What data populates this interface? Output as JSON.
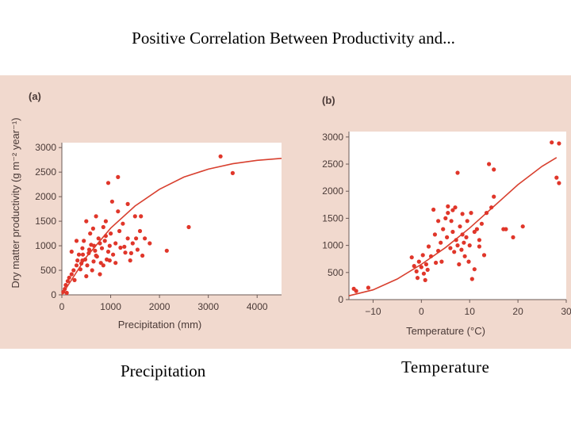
{
  "slide": {
    "title": "Positive Correlation Between Productivity and...",
    "caption_left": "Precipitation",
    "caption_right": "Temperature"
  },
  "colors": {
    "panel_bg": "#f1d9ce",
    "plot_bg": "#ffffff",
    "points": "#e0362a",
    "curve": "#d8402f",
    "axis_text": "#4a3a37"
  },
  "chart_data": [
    {
      "type": "scatter",
      "panel_label": "(a)",
      "xlabel": "Precipitation (mm)",
      "ylabel": "Dry matter productivity (g m⁻² year⁻¹)",
      "xlim": [
        0,
        4500
      ],
      "ylim": [
        0,
        3100
      ],
      "xticks": [
        0,
        1000,
        2000,
        3000,
        4000
      ],
      "yticks": [
        0,
        500,
        1000,
        1500,
        2000,
        2500,
        3000
      ],
      "points": [
        [
          30,
          60
        ],
        [
          60,
          120
        ],
        [
          80,
          200
        ],
        [
          100,
          40
        ],
        [
          120,
          280
        ],
        [
          150,
          350
        ],
        [
          200,
          420
        ],
        [
          240,
          500
        ],
        [
          260,
          300
        ],
        [
          300,
          600
        ],
        [
          320,
          700
        ],
        [
          350,
          820
        ],
        [
          380,
          520
        ],
        [
          400,
          640
        ],
        [
          420,
          950
        ],
        [
          450,
          1100
        ],
        [
          480,
          720
        ],
        [
          500,
          380
        ],
        [
          520,
          600
        ],
        [
          550,
          850
        ],
        [
          580,
          1250
        ],
        [
          600,
          1020
        ],
        [
          620,
          500
        ],
        [
          650,
          680
        ],
        [
          680,
          900
        ],
        [
          700,
          1600
        ],
        [
          720,
          780
        ],
        [
          750,
          1150
        ],
        [
          780,
          420
        ],
        [
          800,
          650
        ],
        [
          820,
          950
        ],
        [
          850,
          1380
        ],
        [
          880,
          1100
        ],
        [
          900,
          1500
        ],
        [
          920,
          720
        ],
        [
          950,
          880
        ],
        [
          980,
          1000
        ],
        [
          1000,
          1250
        ],
        [
          1050,
          820
        ],
        [
          1100,
          1050
        ],
        [
          1150,
          1700
        ],
        [
          1200,
          960
        ],
        [
          1250,
          1450
        ],
        [
          1300,
          860
        ],
        [
          1350,
          1150
        ],
        [
          1400,
          700
        ],
        [
          1450,
          1050
        ],
        [
          1500,
          1600
        ],
        [
          1550,
          920
        ],
        [
          1600,
          1300
        ],
        [
          1650,
          800
        ],
        [
          1700,
          1150
        ],
        [
          1800,
          1050
        ],
        [
          950,
          2280
        ],
        [
          1150,
          2400
        ],
        [
          1030,
          1900
        ],
        [
          1350,
          1850
        ],
        [
          1620,
          1600
        ],
        [
          2150,
          900
        ],
        [
          2600,
          1380
        ],
        [
          3250,
          2820
        ],
        [
          3500,
          2480
        ],
        [
          200,
          880
        ],
        [
          300,
          1100
        ],
        [
          430,
          820
        ],
        [
          500,
          1500
        ],
        [
          560,
          920
        ],
        [
          640,
          1350
        ],
        [
          700,
          800
        ],
        [
          780,
          1050
        ],
        [
          850,
          600
        ],
        [
          900,
          1200
        ],
        [
          980,
          700
        ],
        [
          1100,
          650
        ],
        [
          1180,
          1300
        ],
        [
          1280,
          980
        ],
        [
          1420,
          850
        ],
        [
          1520,
          1150
        ],
        [
          660,
          1000
        ],
        [
          420,
          700
        ]
      ],
      "curve": [
        [
          0,
          0
        ],
        [
          500,
          770
        ],
        [
          1000,
          1360
        ],
        [
          1500,
          1810
        ],
        [
          2000,
          2150
        ],
        [
          2500,
          2400
        ],
        [
          3000,
          2560
        ],
        [
          3500,
          2670
        ],
        [
          4000,
          2740
        ],
        [
          4500,
          2780
        ]
      ]
    },
    {
      "type": "scatter",
      "panel_label": "(b)",
      "xlabel": "Temperature (°C)",
      "ylabel": "",
      "xlim": [
        -15,
        30
      ],
      "ylim": [
        0,
        3100
      ],
      "xticks": [
        -10,
        0,
        10,
        20,
        30
      ],
      "yticks": [
        0,
        500,
        1000,
        1500,
        2000,
        2500,
        3000
      ],
      "points": [
        [
          -14,
          200
        ],
        [
          -13.5,
          160
        ],
        [
          -11,
          220
        ],
        [
          -2,
          780
        ],
        [
          -1.5,
          620
        ],
        [
          -1,
          520
        ],
        [
          -0.8,
          400
        ],
        [
          -0.5,
          700
        ],
        [
          0,
          600
        ],
        [
          0.3,
          820
        ],
        [
          0.5,
          480
        ],
        [
          0.8,
          360
        ],
        [
          1,
          650
        ],
        [
          1.3,
          550
        ],
        [
          1.5,
          980
        ],
        [
          2,
          800
        ],
        [
          2.5,
          1660
        ],
        [
          2.8,
          1200
        ],
        [
          3,
          680
        ],
        [
          3.5,
          900
        ],
        [
          4,
          1050
        ],
        [
          4.2,
          700
        ],
        [
          4.5,
          1300
        ],
        [
          5,
          1500
        ],
        [
          5.3,
          1150
        ],
        [
          5.5,
          1600
        ],
        [
          6,
          950
        ],
        [
          6.2,
          1450
        ],
        [
          6.5,
          1250
        ],
        [
          6.8,
          880
        ],
        [
          7,
          1700
        ],
        [
          7.2,
          1100
        ],
        [
          7.5,
          1000
        ],
        [
          7.8,
          650
        ],
        [
          8,
          1350
        ],
        [
          8.3,
          920
        ],
        [
          8.5,
          1200
        ],
        [
          8.8,
          1050
        ],
        [
          9,
          800
        ],
        [
          9.3,
          1150
        ],
        [
          9.5,
          1450
        ],
        [
          9.8,
          700
        ],
        [
          10,
          1000
        ],
        [
          10.3,
          1600
        ],
        [
          10.5,
          380
        ],
        [
          11,
          560
        ],
        [
          11.5,
          1300
        ],
        [
          12,
          1100
        ],
        [
          12.5,
          1400
        ],
        [
          13,
          820
        ],
        [
          13.5,
          1600
        ],
        [
          14,
          2500
        ],
        [
          14.5,
          1700
        ],
        [
          15,
          1900
        ],
        [
          17,
          1300
        ],
        [
          17.5,
          1300
        ],
        [
          19,
          1150
        ],
        [
          21,
          1350
        ],
        [
          27,
          2900
        ],
        [
          28.5,
          2880
        ],
        [
          28,
          2250
        ],
        [
          28.5,
          2150
        ],
        [
          7.5,
          2340
        ],
        [
          5.5,
          1720
        ],
        [
          6.5,
          1650
        ],
        [
          15,
          2400
        ],
        [
          3.5,
          1450
        ],
        [
          8.5,
          1580
        ],
        [
          11,
          1250
        ],
        [
          12,
          980
        ]
      ],
      "curve": [
        [
          -15,
          70
        ],
        [
          -10,
          180
        ],
        [
          -5,
          380
        ],
        [
          0,
          650
        ],
        [
          5,
          960
        ],
        [
          10,
          1320
        ],
        [
          15,
          1720
        ],
        [
          20,
          2120
        ],
        [
          25,
          2460
        ],
        [
          28,
          2620
        ]
      ]
    }
  ]
}
